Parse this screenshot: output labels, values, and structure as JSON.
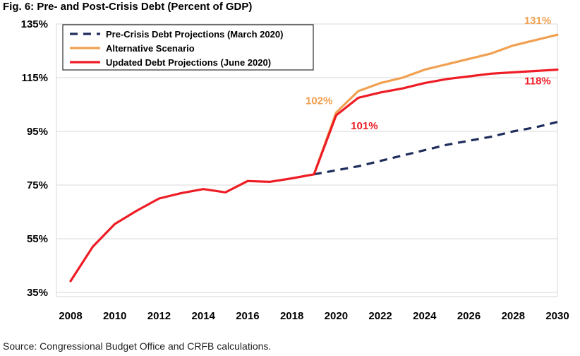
{
  "title": "Fig. 6: Pre- and Post-Crisis Debt (Percent of GDP)",
  "source": "Source: Congressional Budget Office and CRFB calculations.",
  "chart_data": {
    "type": "line",
    "title": "Fig. 6: Pre- and Post-Crisis Debt (Percent of GDP)",
    "xlabel": "",
    "ylabel": "",
    "xlim": [
      2008,
      2030
    ],
    "ylim": [
      35,
      135
    ],
    "grid": "horizontal",
    "legend": "top-left",
    "x_ticks": [
      "2008",
      "2010",
      "2012",
      "2014",
      "2016",
      "2018",
      "2020",
      "2022",
      "2024",
      "2026",
      "2028",
      "2030"
    ],
    "y_ticks": [
      {
        "value": 35,
        "label": "35%"
      },
      {
        "value": 55,
        "label": "55%"
      },
      {
        "value": 75,
        "label": "75%"
      },
      {
        "value": 95,
        "label": "95%"
      },
      {
        "value": 115,
        "label": "115%"
      },
      {
        "value": 135,
        "label": "135%"
      }
    ],
    "series": [
      {
        "name": "Pre-Crisis Debt Projections (March 2020)",
        "color": "#1f2d5c",
        "style": "dashed",
        "x": [
          2019,
          2020,
          2021,
          2022,
          2023,
          2024,
          2025,
          2026,
          2027,
          2028,
          2029,
          2030
        ],
        "y": [
          79,
          80.5,
          82,
          84,
          86,
          88,
          90,
          91.5,
          93,
          95,
          96.5,
          98.5
        ]
      },
      {
        "name": "Alternative Scenario",
        "color": "#f0a050",
        "style": "solid",
        "x": [
          2019,
          2020,
          2021,
          2022,
          2023,
          2024,
          2025,
          2026,
          2027,
          2028,
          2029,
          2030
        ],
        "y": [
          79,
          102,
          110,
          113,
          115,
          118,
          120,
          122,
          124,
          127,
          129,
          131
        ]
      },
      {
        "name": "Updated Debt Projections (June 2020)",
        "color": "#ee1c25",
        "style": "solid",
        "x": [
          2008,
          2009,
          2010,
          2011,
          2012,
          2013,
          2014,
          2015,
          2016,
          2017,
          2018,
          2019,
          2020,
          2021,
          2022,
          2023,
          2024,
          2025,
          2026,
          2027,
          2028,
          2029,
          2030
        ],
        "y": [
          39.2,
          52,
          60.5,
          65.5,
          70,
          72,
          73.5,
          72.3,
          76.5,
          76.2,
          77.5,
          79,
          101,
          107.5,
          109.5,
          111,
          113,
          114.5,
          115.5,
          116.5,
          117,
          117.5,
          118
        ]
      }
    ],
    "annotations": [
      {
        "text": "102%",
        "x": 2020,
        "y": 102,
        "color": "#f0a050"
      },
      {
        "text": "101%",
        "x": 2020,
        "y": 101,
        "color": "#ee1c25"
      },
      {
        "text": "131%",
        "x": 2030,
        "y": 131,
        "color": "#f0a050"
      },
      {
        "text": "118%",
        "x": 2030,
        "y": 118,
        "color": "#ee1c25"
      }
    ]
  }
}
